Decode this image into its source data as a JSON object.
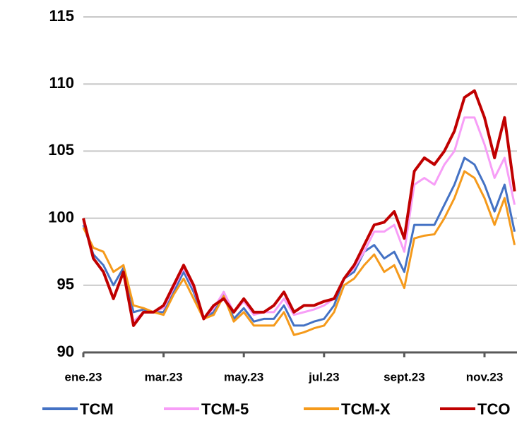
{
  "chart_data": {
    "type": "line",
    "categories": [
      "ene.23",
      null,
      null,
      null,
      null,
      null,
      null,
      null,
      "mar.23",
      null,
      null,
      null,
      null,
      null,
      null,
      null,
      "may.23",
      null,
      null,
      null,
      null,
      null,
      null,
      null,
      "jul.23",
      null,
      null,
      null,
      null,
      null,
      null,
      null,
      "sept.23",
      null,
      null,
      null,
      null,
      null,
      null,
      null,
      "nov.23",
      null,
      null,
      null
    ],
    "series": [
      {
        "name": "TCM",
        "color": "#4472c4",
        "values": [
          99.5,
          97.3,
          96.5,
          95,
          96.3,
          93,
          93.2,
          93,
          93,
          94.5,
          96,
          94.5,
          92.5,
          93,
          94.5,
          92.5,
          93.3,
          92.3,
          92.5,
          92.5,
          93.5,
          92,
          92,
          92.3,
          92.5,
          93.5,
          95.5,
          96,
          97.5,
          98,
          97,
          97.5,
          96,
          99.5,
          99.5,
          99.5,
          101,
          102.5,
          104.5,
          104,
          102.5,
          100.5,
          102.5,
          99
        ]
      },
      {
        "name": "TCM-5",
        "color": "#f79ef7",
        "values": [
          99.8,
          97,
          96,
          94,
          96,
          92.3,
          93,
          93,
          93.3,
          94.8,
          96.3,
          94.8,
          92.5,
          93.3,
          94.5,
          93,
          93.8,
          92.8,
          93,
          93,
          94,
          92.8,
          93,
          93.2,
          93.5,
          94,
          95.5,
          96.3,
          97.5,
          99,
          99,
          99.5,
          97.5,
          102.5,
          103,
          102.5,
          104,
          105,
          107.5,
          107.5,
          105.5,
          103,
          104.5,
          101
        ]
      },
      {
        "name": "TCM-X",
        "color": "#f59a1b",
        "values": [
          99.3,
          97.8,
          97.5,
          96,
          96.5,
          93.5,
          93.3,
          93,
          92.8,
          94.3,
          95.5,
          94,
          92.5,
          92.8,
          94.2,
          92.3,
          93,
          92,
          92,
          92,
          93,
          91.3,
          91.5,
          91.8,
          92,
          93,
          95,
          95.5,
          96.5,
          97.3,
          96,
          96.5,
          94.8,
          98.5,
          98.7,
          98.8,
          100,
          101.5,
          103.5,
          103,
          101.5,
          99.5,
          101.5,
          98
        ]
      },
      {
        "name": "TCO",
        "color": "#c00000",
        "values": [
          100,
          97,
          96,
          94,
          96,
          92,
          93,
          93,
          93.5,
          95,
          96.5,
          95,
          92.5,
          93.5,
          94,
          93,
          94,
          93,
          93,
          93.5,
          94.5,
          93,
          93.5,
          93.5,
          93.8,
          94,
          95.5,
          96.5,
          98,
          99.5,
          99.7,
          100.5,
          98.5,
          103.5,
          104.5,
          104,
          105,
          106.5,
          109,
          109.5,
          107.5,
          104.5,
          107.5,
          102
        ]
      }
    ],
    "ylim": [
      90,
      115
    ],
    "yticks": [
      90,
      95,
      100,
      105,
      110,
      115
    ],
    "grid": true
  }
}
